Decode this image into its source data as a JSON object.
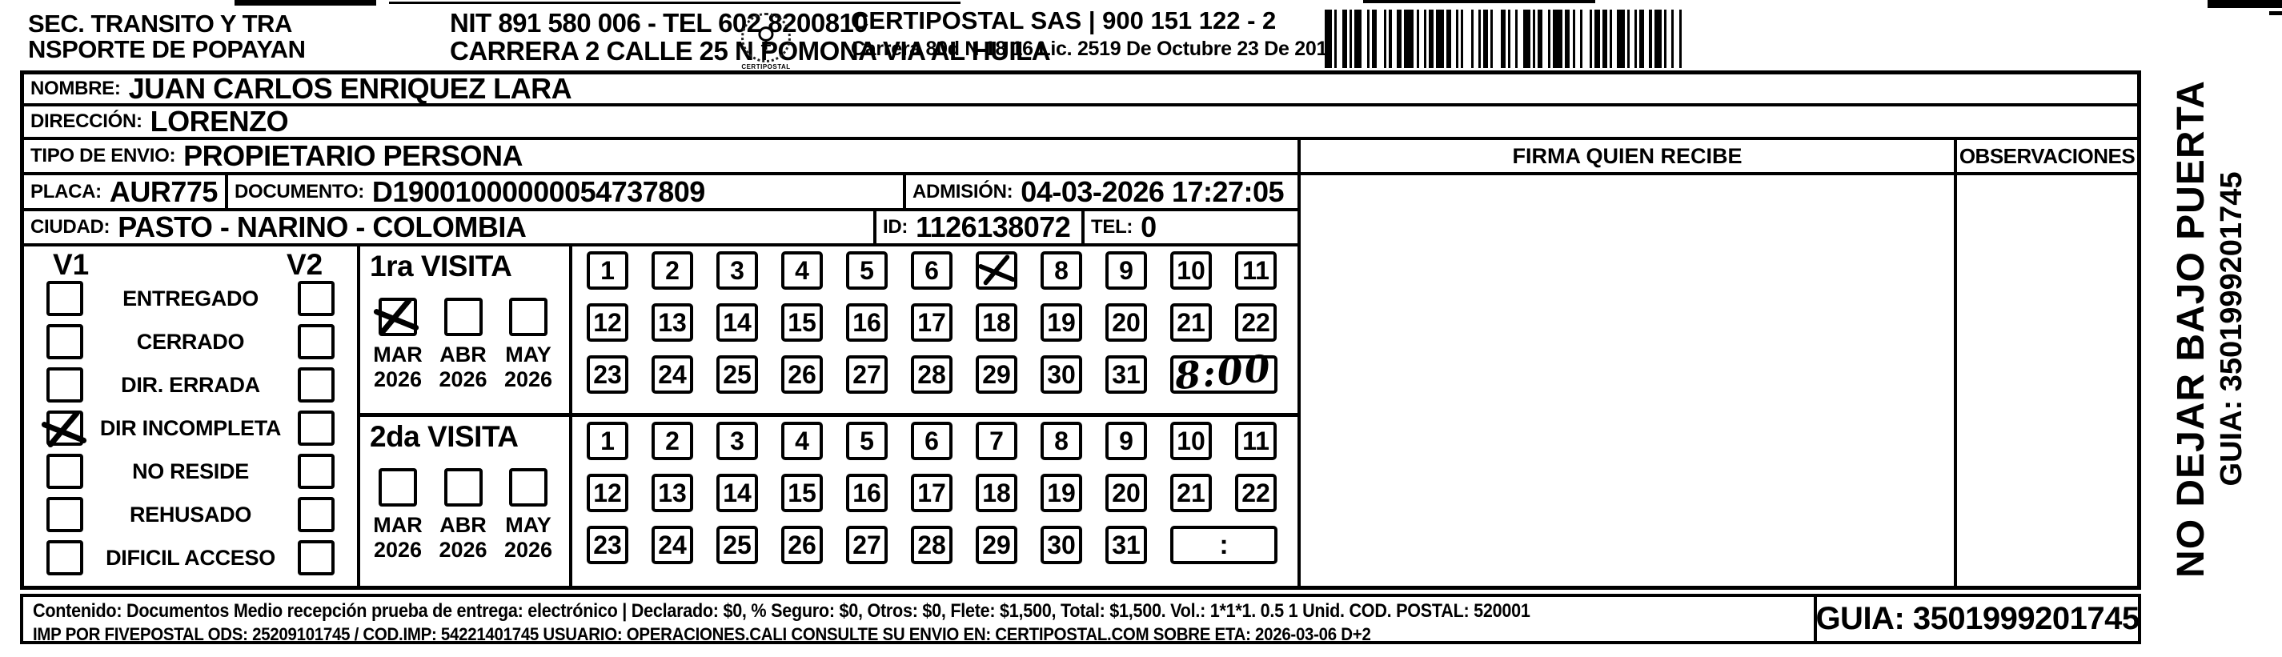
{
  "header": {
    "sender_line1": "SEC. TRANSITO Y TRA",
    "sender_line2": "NSPORTE DE POPAYAN",
    "nit_line": "NIT 891 580 006 - TEL 602 8200810",
    "address_line": "CARRERA 2 CALLE 25 N POMONA VIA AL HUILA",
    "logo_glyph": "♀",
    "logo_text": "CERTIPOSTAL",
    "company_line": "CERTIPOSTAL SAS | 900 151 122 - 2",
    "company_address": "Carrera 80d N 18 16  Lic. 2519 De Octubre 23 De 2015"
  },
  "shipment": {
    "nombre_label": "NOMBRE:",
    "nombre_value": "JUAN CARLOS ENRIQUEZ LARA",
    "direccion_label": "DIRECCIÓN:",
    "direccion_value": "LORENZO",
    "tipo_label": "TIPO DE ENVIO:",
    "tipo_value": "PROPIETARIO PERSONA",
    "placa_label": "PLACA:",
    "placa_value": "AUR775",
    "documento_label": "DOCUMENTO:",
    "documento_value": "D19001000000054737809",
    "admision_label": "ADMISIÓN:",
    "admision_value": "04-03-2026 17:27:05",
    "ciudad_label": "CIUDAD:",
    "ciudad_value": "PASTO - NARINO - COLOMBIA",
    "id_label": "ID:",
    "id_value": "1126138072",
    "tel_label": "TEL:",
    "tel_value": "0"
  },
  "status_panel": {
    "col1_header": "V1",
    "col2_header": "V2",
    "items": [
      {
        "label": "ENTREGADO",
        "v1_checked": false,
        "v2_checked": false
      },
      {
        "label": "CERRADO",
        "v1_checked": false,
        "v2_checked": false
      },
      {
        "label": "DIR. ERRADA",
        "v1_checked": false,
        "v2_checked": false
      },
      {
        "label": "DIR INCOMPLETA",
        "v1_checked": true,
        "v2_checked": false
      },
      {
        "label": "NO RESIDE",
        "v1_checked": false,
        "v2_checked": false
      },
      {
        "label": "REHUSADO",
        "v1_checked": false,
        "v2_checked": false
      },
      {
        "label": "DIFICIL ACCESO",
        "v1_checked": false,
        "v2_checked": false
      }
    ]
  },
  "visits": {
    "day_rows": [
      [
        1,
        2,
        3,
        4,
        5,
        6,
        7,
        8,
        9,
        10,
        11
      ],
      [
        12,
        13,
        14,
        15,
        16,
        17,
        18,
        19,
        20,
        21,
        22
      ],
      [
        23,
        24,
        25,
        26,
        27,
        28,
        29,
        30,
        31
      ]
    ],
    "first": {
      "title": "1ra VISITA",
      "months": [
        {
          "label": "MAR",
          "year": "2026",
          "checked": true
        },
        {
          "label": "ABR",
          "year": "2026",
          "checked": false
        },
        {
          "label": "MAY",
          "year": "2026",
          "checked": false
        }
      ],
      "crossed_day": 7,
      "time_value": "8:00",
      "time_handwritten": true
    },
    "second": {
      "title": "2da VISITA",
      "months": [
        {
          "label": "MAR",
          "year": "2026",
          "checked": false
        },
        {
          "label": "ABR",
          "year": "2026",
          "checked": false
        },
        {
          "label": "MAY",
          "year": "2026",
          "checked": false
        }
      ],
      "crossed_day": null,
      "time_value": ":",
      "time_handwritten": false
    }
  },
  "signature": {
    "header": "FIRMA QUIEN RECIBE"
  },
  "observations": {
    "header": "OBSERVACIONES"
  },
  "side_panel": {
    "warning": "NO DEJAR BAJO PUERTA",
    "guia": "GUIA: 3501999201745"
  },
  "footer": {
    "line1": "Contenido: Documentos Medio recepción prueba de entrega: electrónico | Declarado: $0, % Seguro: $0, Otros: $0, Flete: $1,500, Total: $1,500. Vol.: 1*1*1. 0.5  1 Unid. COD. POSTAL: 520001",
    "line2": "IMP POR FIVEPOSTAL ODS: 25209101745 / COD.IMP: 54221401745 USUARIO: OPERACIONES.CALI CONSULTE SU ENVIO EN: CERTIPOSTAL.COM SOBRE ETA: 2026-03-06 D+2",
    "guia_box": "GUIA: 3501999201745"
  },
  "colors": {
    "ink": "#000000",
    "paper": "#ffffff"
  }
}
